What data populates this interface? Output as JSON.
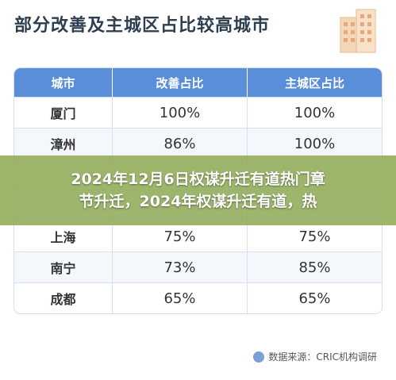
{
  "header": {
    "title": "部分改善及主城区占比较高城市"
  },
  "table": {
    "columns": [
      "城市",
      "改善占比",
      "主城区占比"
    ],
    "rows": [
      {
        "city": "厦门",
        "improve": "100%",
        "main": "100%"
      },
      {
        "city": "漳州",
        "improve": "86%",
        "main": "100%"
      },
      {
        "city": "",
        "improve": "",
        "main": ""
      },
      {
        "city": "",
        "improve": "",
        "main": ""
      },
      {
        "city": "上海",
        "improve": "75%",
        "main": "75%"
      },
      {
        "city": "南宁",
        "improve": "73%",
        "main": "85%"
      },
      {
        "city": "成都",
        "improve": "65%",
        "main": "65%"
      }
    ]
  },
  "overlay": {
    "line1": "2024年12月6日权谋升迁有道热门章",
    "line2": "节升迁，2024年权谋升迁有道，热"
  },
  "footer": {
    "source": "数据来源：CRIC机构调研"
  },
  "colors": {
    "header_bg": "#5b8ed9",
    "overlay_bg": "#8eaa54"
  }
}
